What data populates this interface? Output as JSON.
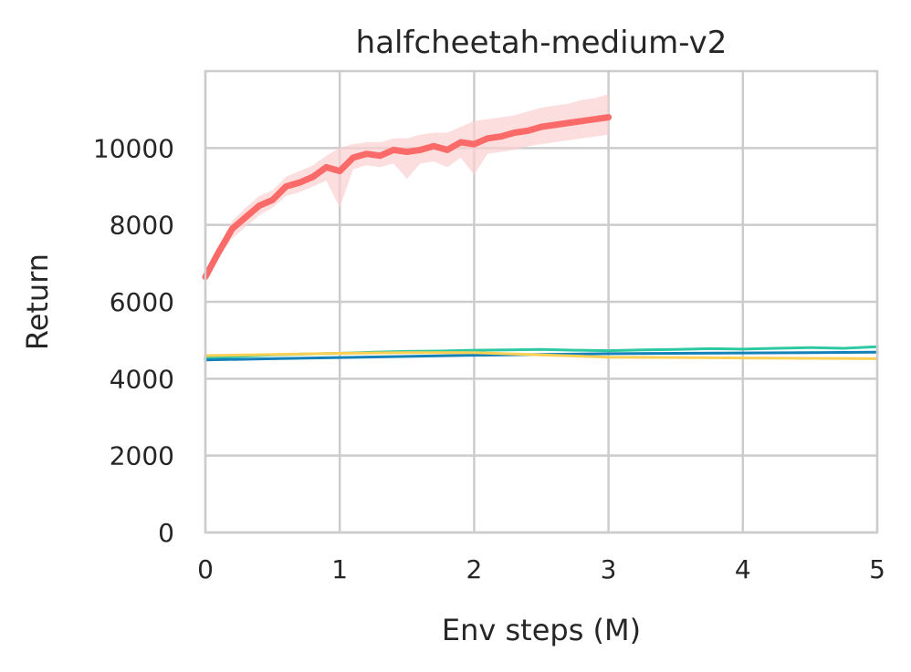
{
  "chart_data": {
    "type": "line",
    "title": "halfcheetah-medium-v2",
    "xlabel": "Env steps (M)",
    "ylabel": "Return",
    "xlim": [
      0,
      5
    ],
    "ylim": [
      0,
      12000
    ],
    "xticks": [
      "0",
      "1",
      "2",
      "3",
      "4",
      "5"
    ],
    "xtick_values": [
      0,
      1,
      2,
      3,
      4,
      5
    ],
    "yticks": [
      "0",
      "2000",
      "4000",
      "6000",
      "8000",
      "10000"
    ],
    "ytick_values": [
      0,
      2000,
      4000,
      6000,
      8000,
      10000
    ],
    "grid": true,
    "legend": "none",
    "series": [
      {
        "name": "red",
        "color": "#fa6a68",
        "band_color": "#fbd0d0",
        "x": [
          0,
          0.1,
          0.2,
          0.3,
          0.4,
          0.5,
          0.6,
          0.7,
          0.8,
          0.9,
          1.0,
          1.1,
          1.2,
          1.3,
          1.4,
          1.5,
          1.6,
          1.7,
          1.8,
          1.9,
          2.0,
          2.1,
          2.2,
          2.3,
          2.4,
          2.5,
          2.6,
          2.7,
          2.8,
          2.9,
          3.0
        ],
        "y": [
          6650,
          7300,
          7900,
          8200,
          8500,
          8650,
          9000,
          9100,
          9250,
          9500,
          9400,
          9750,
          9850,
          9800,
          9950,
          9900,
          9950,
          10050,
          9950,
          10150,
          10100,
          10250,
          10300,
          10400,
          10450,
          10550,
          10600,
          10650,
          10700,
          10750,
          10800
        ],
        "band_low": [
          6500,
          7150,
          7650,
          7950,
          8250,
          8450,
          8750,
          8850,
          9000,
          9150,
          8450,
          9450,
          9550,
          9500,
          9600,
          9200,
          9600,
          9650,
          9500,
          9750,
          9300,
          9850,
          9900,
          9950,
          10050,
          10100,
          10150,
          10200,
          10250,
          10300,
          10350
        ],
        "band_high": [
          6800,
          7450,
          8100,
          8450,
          8750,
          8900,
          9250,
          9400,
          9550,
          9800,
          10000,
          10100,
          10150,
          10150,
          10250,
          10250,
          10350,
          10400,
          10400,
          10550,
          10700,
          10750,
          10800,
          10850,
          10950,
          11050,
          11100,
          11150,
          11250,
          11300,
          11400
        ]
      },
      {
        "name": "teal",
        "color": "#2ec9a0",
        "x": [
          0,
          0.25,
          0.5,
          0.75,
          1.0,
          1.25,
          1.5,
          1.75,
          2.0,
          2.25,
          2.5,
          2.75,
          3.0,
          3.25,
          3.5,
          3.75,
          4.0,
          4.25,
          4.5,
          4.75,
          5.0
        ],
        "y": [
          4550,
          4580,
          4620,
          4640,
          4660,
          4690,
          4710,
          4720,
          4740,
          4750,
          4760,
          4740,
          4730,
          4750,
          4760,
          4780,
          4770,
          4790,
          4810,
          4790,
          4830
        ]
      },
      {
        "name": "blue",
        "color": "#1481b8",
        "x": [
          0,
          0.5,
          1.0,
          1.5,
          2.0,
          2.5,
          3.0,
          3.5,
          4.0,
          4.5,
          5.0
        ],
        "y": [
          4490,
          4520,
          4550,
          4580,
          4610,
          4630,
          4650,
          4660,
          4670,
          4680,
          4690
        ]
      },
      {
        "name": "yellow",
        "color": "#fcd054",
        "x": [
          0,
          0.5,
          1.0,
          1.5,
          2.0,
          2.5,
          3.0,
          3.5,
          4.0,
          4.5,
          5.0
        ],
        "y": [
          4600,
          4630,
          4660,
          4680,
          4680,
          4620,
          4560,
          4550,
          4540,
          4530,
          4520
        ]
      }
    ]
  }
}
